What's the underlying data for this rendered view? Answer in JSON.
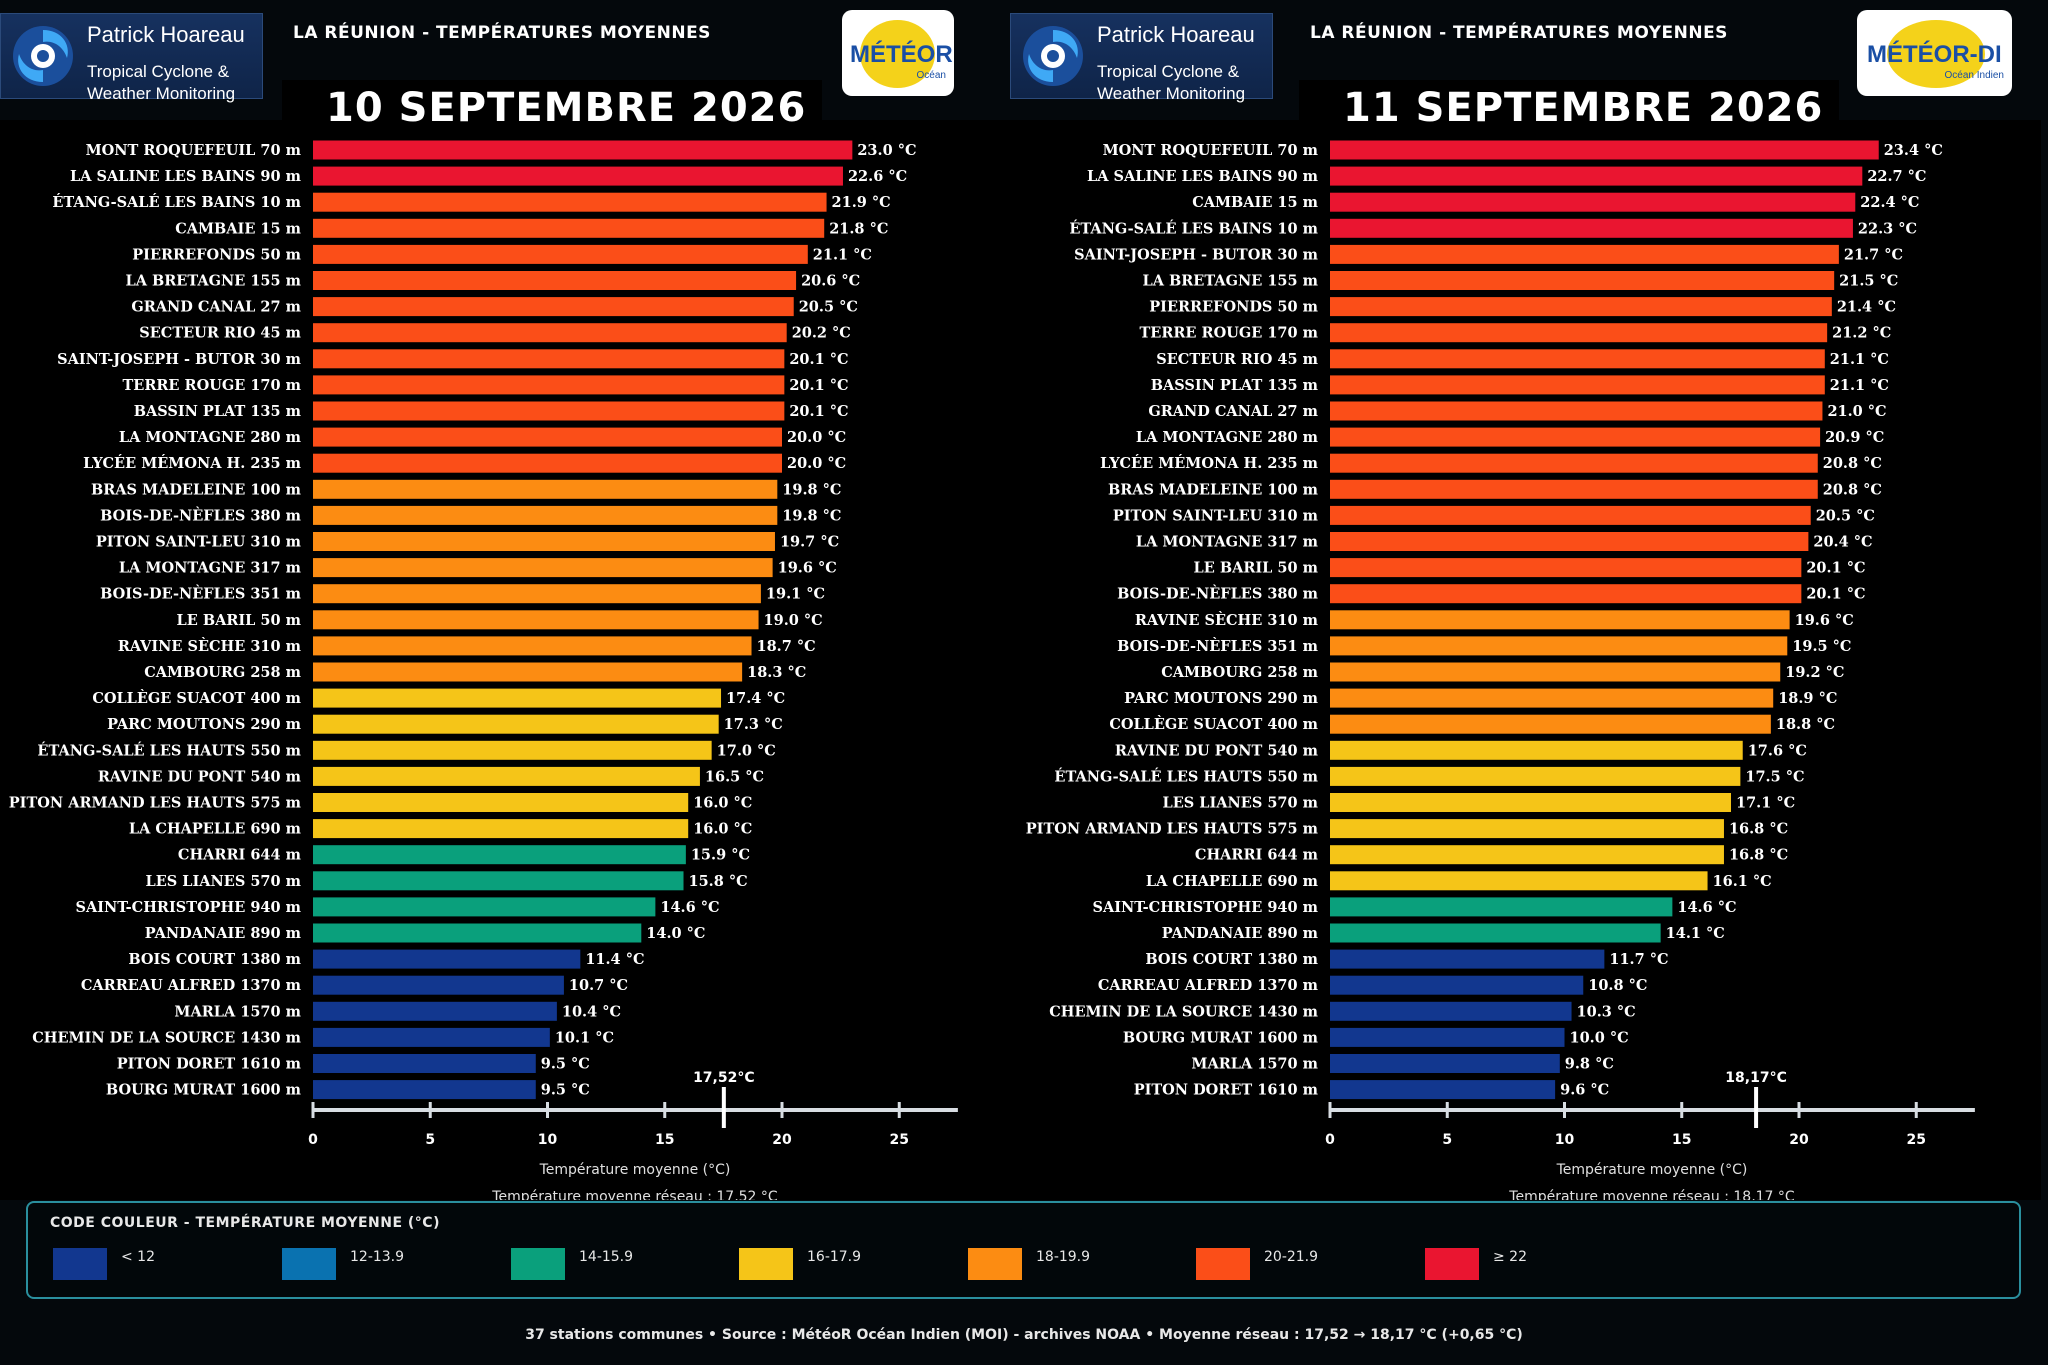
{
  "brand": {
    "name": "Patrick Hoareau",
    "line1": "Tropical Cyclone &",
    "line2": "Weather Monitoring"
  },
  "colors": {
    "lt12": "#12378f",
    "c12_13": "#0a72b0",
    "c14_15": "#0aa07c",
    "c16_17": "#f5c518",
    "c18_19": "#fc8c12",
    "c20_21": "#fb4e18",
    "ge22": "#ea1530",
    "axis": "#d8dde2",
    "text": "#ffffff"
  },
  "panels": [
    {
      "header_title": "LA RÉUNION - TEMPÉRATURES MOYENNES",
      "date_title": "10 SEPTEMBRE 2026",
      "badge_text": "MÉTÉOR",
      "badge_sub": "Océan",
      "xlabel": "Température moyenne (°C)",
      "mean_text": "Température moyenne réseau : 17,52 °C",
      "mean_marker_label": "17,52°C"
    },
    {
      "header_title": "LA RÉUNION - TEMPÉRATURES MOYENNES",
      "date_title": "11 SEPTEMBRE 2026",
      "badge_text": "MÉTÉOR-DI",
      "badge_sub": "Océan Indien",
      "xlabel": "Température moyenne (°C)",
      "mean_text": "Température moyenne réseau : 18,17 °C",
      "mean_marker_label": "18,17°C"
    }
  ],
  "chart_data": [
    {
      "type": "bar",
      "orientation": "horizontal",
      "title": "10 SEPTEMBRE 2026",
      "xlabel": "Température moyenne (°C)",
      "xlim": [
        0,
        27.5
      ],
      "xticks": [
        0,
        5,
        10,
        15,
        20,
        25
      ],
      "mean": 17.52,
      "categories": [
        "MONT ROQUEFEUIL 70 m",
        "LA SALINE LES BAINS 90 m",
        "ÉTANG-SALÉ LES BAINS 10 m",
        "CAMBAIE 15 m",
        "PIERREFONDS 50 m",
        "LA BRETAGNE 155 m",
        "GRAND CANAL 27 m",
        "SECTEUR RIO 45 m",
        "SAINT-JOSEPH - BUTOR 30 m",
        "TERRE ROUGE 170 m",
        "BASSIN PLAT 135 m",
        "LA MONTAGNE 280 m",
        "LYCÉE MÉMONA H. 235 m",
        "BRAS MADELEINE 100 m",
        "BOIS-DE-NÈFLES 380 m",
        "PITON SAINT-LEU 310 m",
        "LA MONTAGNE 317 m",
        "BOIS-DE-NÈFLES 351 m",
        "LE BARIL 50 m",
        "RAVINE SÈCHE 310 m",
        "CAMBOURG 258 m",
        "COLLÈGE SUACOT 400 m",
        "PARC MOUTONS 290 m",
        "ÉTANG-SALÉ LES HAUTS 550 m",
        "RAVINE DU PONT 540 m",
        "PITON ARMAND LES HAUTS 575 m",
        "LA CHAPELLE 690 m",
        "CHARRI 644 m",
        "LES LIANES 570 m",
        "SAINT-CHRISTOPHE 940 m",
        "PANDANAIE 890 m",
        "BOIS COURT 1380 m",
        "CARREAU ALFRED 1370 m",
        "MARLA 1570 m",
        "CHEMIN DE LA SOURCE 1430 m",
        "PITON DORET 1610 m",
        "BOURG MURAT 1600 m"
      ],
      "values": [
        23.0,
        22.6,
        21.9,
        21.8,
        21.1,
        20.6,
        20.5,
        20.2,
        20.1,
        20.1,
        20.1,
        20.0,
        20.0,
        19.8,
        19.8,
        19.7,
        19.6,
        19.1,
        19.0,
        18.7,
        18.3,
        17.4,
        17.3,
        17.0,
        16.5,
        16.0,
        16.0,
        15.9,
        15.8,
        14.6,
        14.0,
        11.4,
        10.7,
        10.4,
        10.1,
        9.5,
        9.5
      ],
      "value_labels": [
        "23.0 °C",
        "22.6 °C",
        "21.9 °C",
        "21.8 °C",
        "21.1 °C",
        "20.6 °C",
        "20.5 °C",
        "20.2 °C",
        "20.1 °C",
        "20.1 °C",
        "20.1 °C",
        "20.0 °C",
        "20.0 °C",
        "19.8 °C",
        "19.8 °C",
        "19.7 °C",
        "19.6 °C",
        "19.1 °C",
        "19.0 °C",
        "18.7 °C",
        "18.3 °C",
        "17.4 °C",
        "17.3 °C",
        "17.0 °C",
        "16.5 °C",
        "16.0 °C",
        "16.0 °C",
        "15.9 °C",
        "15.8 °C",
        "14.6 °C",
        "14.0 °C",
        "11.4 °C",
        "10.7 °C",
        "10.4 °C",
        "10.1 °C",
        "9.5 °C",
        "9.5 °C"
      ],
      "bar_colors": [
        "#ea1530",
        "#ea1530",
        "#fb4e18",
        "#fb4e18",
        "#fb4e18",
        "#fb4e18",
        "#fb4e18",
        "#fb4e18",
        "#fb4e18",
        "#fb4e18",
        "#fb4e18",
        "#fb4e18",
        "#fb4e18",
        "#fc8c12",
        "#fc8c12",
        "#fc8c12",
        "#fc8c12",
        "#fc8c12",
        "#fc8c12",
        "#fc8c12",
        "#fc8c12",
        "#f5c518",
        "#f5c518",
        "#f5c518",
        "#f5c518",
        "#f5c518",
        "#f5c518",
        "#0aa07c",
        "#0aa07c",
        "#0aa07c",
        "#0aa07c",
        "#12378f",
        "#12378f",
        "#12378f",
        "#12378f",
        "#12378f",
        "#12378f"
      ]
    },
    {
      "type": "bar",
      "orientation": "horizontal",
      "title": "11 SEPTEMBRE 2026",
      "xlabel": "Température moyenne (°C)",
      "xlim": [
        0,
        27.5
      ],
      "xticks": [
        0,
        5,
        10,
        15,
        20,
        25
      ],
      "mean": 18.17,
      "categories": [
        "MONT ROQUEFEUIL 70 m",
        "LA SALINE LES BAINS 90 m",
        "CAMBAIE 15 m",
        "ÉTANG-SALÉ LES BAINS 10 m",
        "SAINT-JOSEPH - BUTOR 30 m",
        "LA BRETAGNE 155 m",
        "PIERREFONDS 50 m",
        "TERRE ROUGE 170 m",
        "SECTEUR RIO 45 m",
        "BASSIN PLAT 135 m",
        "GRAND CANAL 27 m",
        "LA MONTAGNE 280 m",
        "LYCÉE MÉMONA H. 235 m",
        "BRAS MADELEINE 100 m",
        "PITON SAINT-LEU 310 m",
        "LA MONTAGNE 317 m",
        "LE BARIL 50 m",
        "BOIS-DE-NÈFLES 380 m",
        "RAVINE SÈCHE 310 m",
        "BOIS-DE-NÈFLES 351 m",
        "CAMBOURG 258 m",
        "PARC MOUTONS 290 m",
        "COLLÈGE SUACOT 400 m",
        "RAVINE DU PONT 540 m",
        "ÉTANG-SALÉ LES HAUTS 550 m",
        "LES LIANES 570 m",
        "PITON ARMAND LES HAUTS 575 m",
        "CHARRI 644 m",
        "LA CHAPELLE 690 m",
        "SAINT-CHRISTOPHE 940 m",
        "PANDANAIE 890 m",
        "BOIS COURT 1380 m",
        "CARREAU ALFRED 1370 m",
        "CHEMIN DE LA SOURCE 1430 m",
        "BOURG MURAT 1600 m",
        "MARLA 1570 m",
        "PITON DORET 1610 m"
      ],
      "values": [
        23.4,
        22.7,
        22.4,
        22.3,
        21.7,
        21.5,
        21.4,
        21.2,
        21.1,
        21.1,
        21.0,
        20.9,
        20.8,
        20.8,
        20.5,
        20.4,
        20.1,
        20.1,
        19.6,
        19.5,
        19.2,
        18.9,
        18.8,
        17.6,
        17.5,
        17.1,
        16.8,
        16.8,
        16.1,
        14.6,
        14.1,
        11.7,
        10.8,
        10.3,
        10.0,
        9.8,
        9.6
      ],
      "value_labels": [
        "23.4 °C",
        "22.7 °C",
        "22.4 °C",
        "22.3 °C",
        "21.7 °C",
        "21.5 °C",
        "21.4 °C",
        "21.2 °C",
        "21.1 °C",
        "21.1 °C",
        "21.0 °C",
        "20.9 °C",
        "20.8 °C",
        "20.8 °C",
        "20.5 °C",
        "20.4 °C",
        "20.1 °C",
        "20.1 °C",
        "19.6 °C",
        "19.5 °C",
        "19.2 °C",
        "18.9 °C",
        "18.8 °C",
        "17.6 °C",
        "17.5 °C",
        "17.1 °C",
        "16.8 °C",
        "16.8 °C",
        "16.1 °C",
        "14.6 °C",
        "14.1 °C",
        "11.7 °C",
        "10.8 °C",
        "10.3 °C",
        "10.0 °C",
        "9.8 °C",
        "9.6 °C"
      ],
      "bar_colors": [
        "#ea1530",
        "#ea1530",
        "#ea1530",
        "#ea1530",
        "#fb4e18",
        "#fb4e18",
        "#fb4e18",
        "#fb4e18",
        "#fb4e18",
        "#fb4e18",
        "#fb4e18",
        "#fb4e18",
        "#fb4e18",
        "#fb4e18",
        "#fb4e18",
        "#fb4e18",
        "#fb4e18",
        "#fb4e18",
        "#fc8c12",
        "#fc8c12",
        "#fc8c12",
        "#fc8c12",
        "#fc8c12",
        "#f5c518",
        "#f5c518",
        "#f5c518",
        "#f5c518",
        "#f5c518",
        "#f5c518",
        "#0aa07c",
        "#0aa07c",
        "#12378f",
        "#12378f",
        "#12378f",
        "#12378f",
        "#12378f",
        "#12378f"
      ]
    }
  ],
  "legend": {
    "title": "CODE COULEUR - TEMPÉRATURE MOYENNE (°C)",
    "items": [
      {
        "label": "< 12",
        "color": "#12378f"
      },
      {
        "label": "12-13.9",
        "color": "#0a72b0"
      },
      {
        "label": "14-15.9",
        "color": "#0aa07c"
      },
      {
        "label": "16-17.9",
        "color": "#f5c518"
      },
      {
        "label": "18-19.9",
        "color": "#fc8c12"
      },
      {
        "label": "20-21.9",
        "color": "#fb4e18"
      },
      {
        "label": "≥ 22",
        "color": "#ea1530"
      }
    ]
  },
  "footer": "37 stations communes  •  Source : MétéoR Océan Indien (MOI) - archives NOAA  •  Moyenne réseau : 17,52 → 18,17 °C (+0,65 °C)"
}
